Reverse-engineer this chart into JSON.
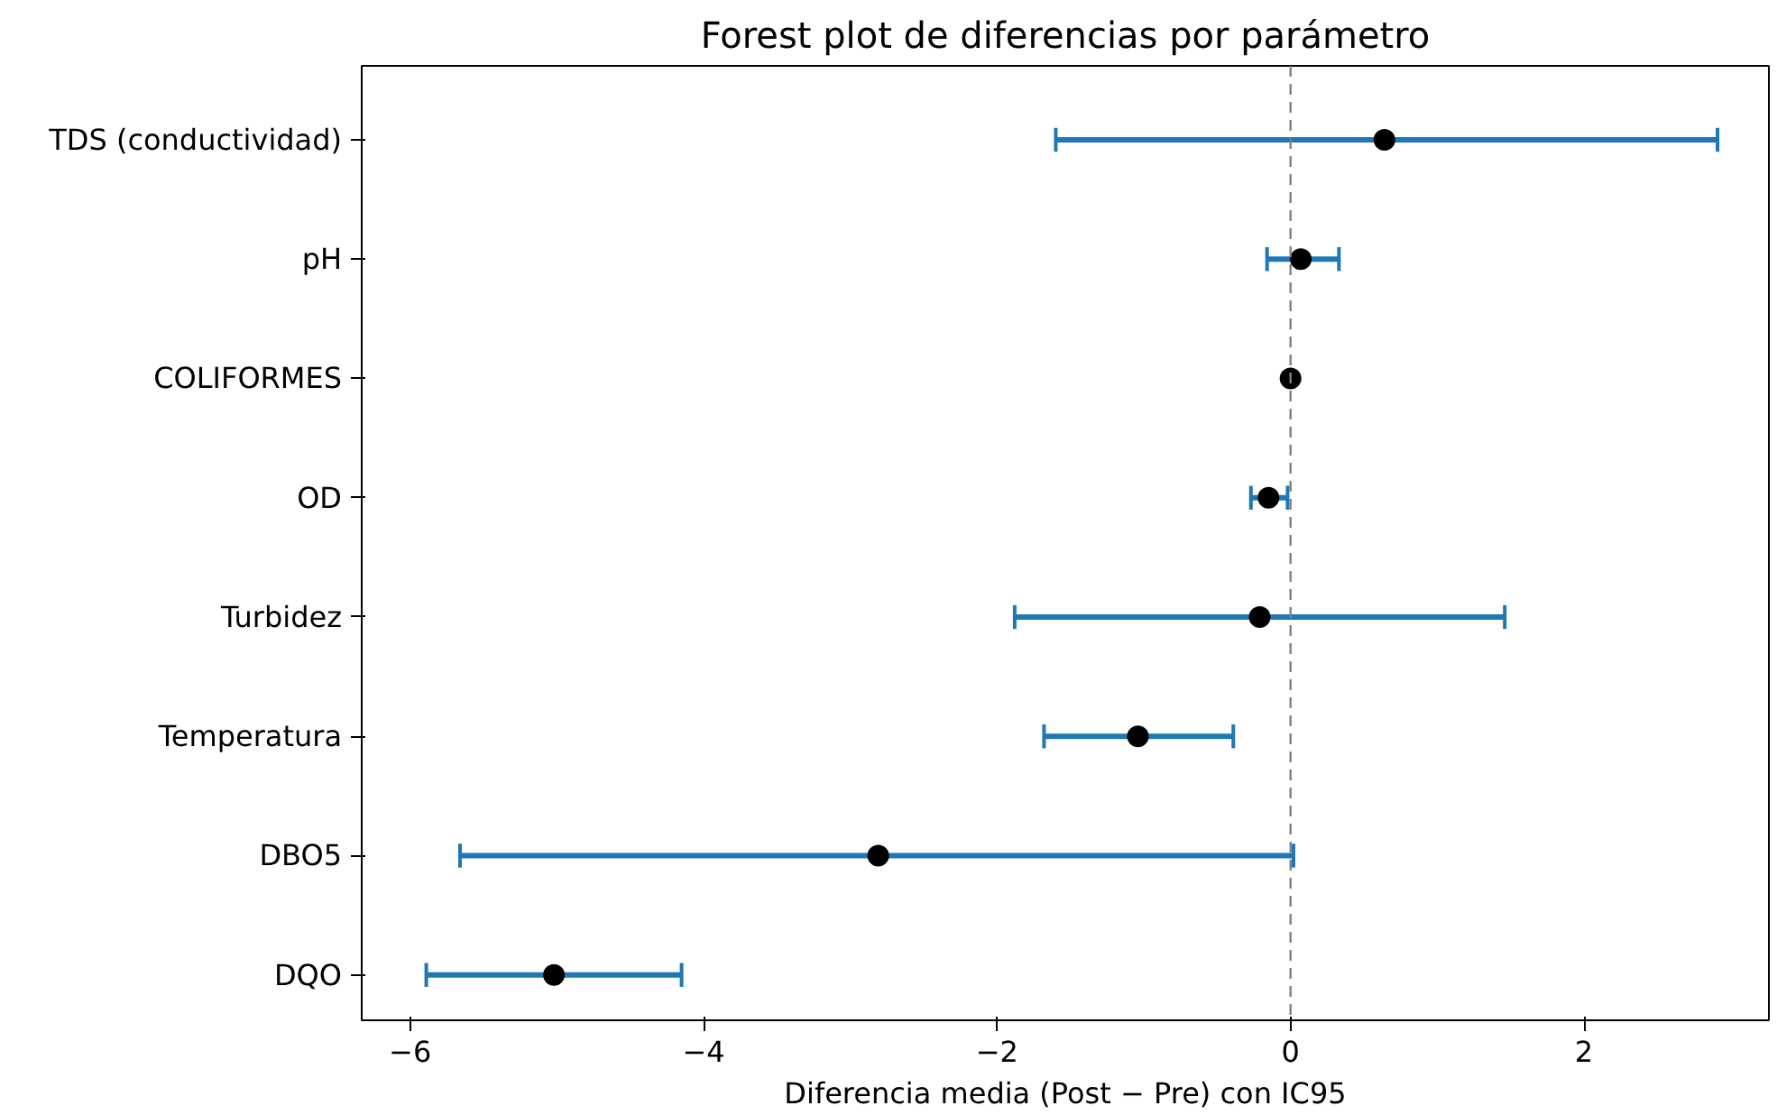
{
  "chart_data": {
    "type": "scatter",
    "orientation": "horizontal",
    "title": "Forest plot de diferencias por parámetro",
    "xlabel": "Diferencia media (Post − Pre) con IC95",
    "categories": [
      "TDS (conductividad)",
      "pH",
      "COLIFORMES",
      "OD",
      "Turbidez",
      "Temperatura",
      "DBO5",
      "DQO"
    ],
    "series": [
      {
        "color": "#000000",
        "values": [
          0.64,
          0.07,
          0.0,
          -0.15,
          -0.21,
          -1.04,
          -2.81,
          -5.02
        ],
        "errors": [
          [
            -1.6,
            2.91
          ],
          [
            -0.16,
            0.33
          ],
          null,
          [
            -0.27,
            -0.02
          ],
          [
            -1.88,
            1.46
          ],
          [
            -1.68,
            -0.39
          ],
          [
            -5.66,
            0.02
          ],
          [
            -5.89,
            -4.15
          ]
        ]
      }
    ],
    "xlim": [
      -6.33,
      3.26
    ],
    "xticks": [
      {
        "value": -6,
        "label": "−6"
      },
      {
        "value": -4,
        "label": "−4"
      },
      {
        "value": -2,
        "label": "−2"
      },
      0,
      2
    ],
    "ref_lines": [
      {
        "axis": "x",
        "value": 0,
        "color": "#808080",
        "line_style": "dashed"
      }
    ],
    "marker": "circle",
    "grid": false
  }
}
